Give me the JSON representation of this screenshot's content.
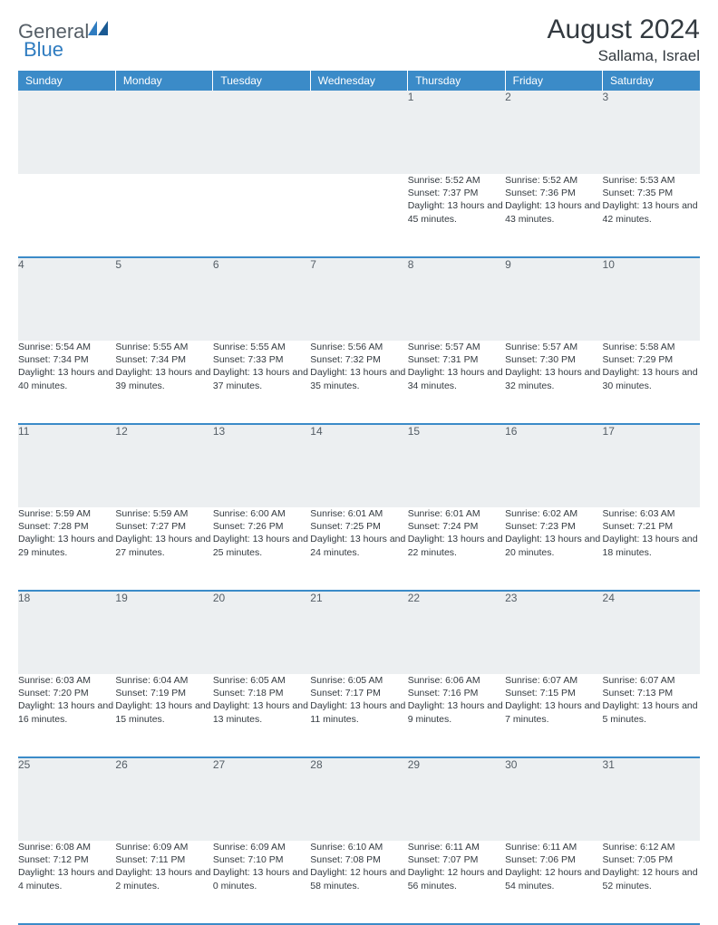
{
  "brand": {
    "name_gray": "General",
    "name_blue": "Blue",
    "blue_color": "#2f7cc0",
    "gray_color": "#555e66"
  },
  "title": "August 2024",
  "location": "Sallama, Israel",
  "header_bg": "#3b8bc8",
  "daynum_bg": "#eceff1",
  "border_color": "#3b8bc8",
  "text_color": "#333a40",
  "weekdays": [
    "Sunday",
    "Monday",
    "Tuesday",
    "Wednesday",
    "Thursday",
    "Friday",
    "Saturday"
  ],
  "weeks": [
    [
      null,
      null,
      null,
      null,
      {
        "d": "1",
        "sr": "5:52 AM",
        "ss": "7:37 PM",
        "dl": "13 hours and 45 minutes."
      },
      {
        "d": "2",
        "sr": "5:52 AM",
        "ss": "7:36 PM",
        "dl": "13 hours and 43 minutes."
      },
      {
        "d": "3",
        "sr": "5:53 AM",
        "ss": "7:35 PM",
        "dl": "13 hours and 42 minutes."
      }
    ],
    [
      {
        "d": "4",
        "sr": "5:54 AM",
        "ss": "7:34 PM",
        "dl": "13 hours and 40 minutes."
      },
      {
        "d": "5",
        "sr": "5:55 AM",
        "ss": "7:34 PM",
        "dl": "13 hours and 39 minutes."
      },
      {
        "d": "6",
        "sr": "5:55 AM",
        "ss": "7:33 PM",
        "dl": "13 hours and 37 minutes."
      },
      {
        "d": "7",
        "sr": "5:56 AM",
        "ss": "7:32 PM",
        "dl": "13 hours and 35 minutes."
      },
      {
        "d": "8",
        "sr": "5:57 AM",
        "ss": "7:31 PM",
        "dl": "13 hours and 34 minutes."
      },
      {
        "d": "9",
        "sr": "5:57 AM",
        "ss": "7:30 PM",
        "dl": "13 hours and 32 minutes."
      },
      {
        "d": "10",
        "sr": "5:58 AM",
        "ss": "7:29 PM",
        "dl": "13 hours and 30 minutes."
      }
    ],
    [
      {
        "d": "11",
        "sr": "5:59 AM",
        "ss": "7:28 PM",
        "dl": "13 hours and 29 minutes."
      },
      {
        "d": "12",
        "sr": "5:59 AM",
        "ss": "7:27 PM",
        "dl": "13 hours and 27 minutes."
      },
      {
        "d": "13",
        "sr": "6:00 AM",
        "ss": "7:26 PM",
        "dl": "13 hours and 25 minutes."
      },
      {
        "d": "14",
        "sr": "6:01 AM",
        "ss": "7:25 PM",
        "dl": "13 hours and 24 minutes."
      },
      {
        "d": "15",
        "sr": "6:01 AM",
        "ss": "7:24 PM",
        "dl": "13 hours and 22 minutes."
      },
      {
        "d": "16",
        "sr": "6:02 AM",
        "ss": "7:23 PM",
        "dl": "13 hours and 20 minutes."
      },
      {
        "d": "17",
        "sr": "6:03 AM",
        "ss": "7:21 PM",
        "dl": "13 hours and 18 minutes."
      }
    ],
    [
      {
        "d": "18",
        "sr": "6:03 AM",
        "ss": "7:20 PM",
        "dl": "13 hours and 16 minutes."
      },
      {
        "d": "19",
        "sr": "6:04 AM",
        "ss": "7:19 PM",
        "dl": "13 hours and 15 minutes."
      },
      {
        "d": "20",
        "sr": "6:05 AM",
        "ss": "7:18 PM",
        "dl": "13 hours and 13 minutes."
      },
      {
        "d": "21",
        "sr": "6:05 AM",
        "ss": "7:17 PM",
        "dl": "13 hours and 11 minutes."
      },
      {
        "d": "22",
        "sr": "6:06 AM",
        "ss": "7:16 PM",
        "dl": "13 hours and 9 minutes."
      },
      {
        "d": "23",
        "sr": "6:07 AM",
        "ss": "7:15 PM",
        "dl": "13 hours and 7 minutes."
      },
      {
        "d": "24",
        "sr": "6:07 AM",
        "ss": "7:13 PM",
        "dl": "13 hours and 5 minutes."
      }
    ],
    [
      {
        "d": "25",
        "sr": "6:08 AM",
        "ss": "7:12 PM",
        "dl": "13 hours and 4 minutes."
      },
      {
        "d": "26",
        "sr": "6:09 AM",
        "ss": "7:11 PM",
        "dl": "13 hours and 2 minutes."
      },
      {
        "d": "27",
        "sr": "6:09 AM",
        "ss": "7:10 PM",
        "dl": "13 hours and 0 minutes."
      },
      {
        "d": "28",
        "sr": "6:10 AM",
        "ss": "7:08 PM",
        "dl": "12 hours and 58 minutes."
      },
      {
        "d": "29",
        "sr": "6:11 AM",
        "ss": "7:07 PM",
        "dl": "12 hours and 56 minutes."
      },
      {
        "d": "30",
        "sr": "6:11 AM",
        "ss": "7:06 PM",
        "dl": "12 hours and 54 minutes."
      },
      {
        "d": "31",
        "sr": "6:12 AM",
        "ss": "7:05 PM",
        "dl": "12 hours and 52 minutes."
      }
    ]
  ],
  "labels": {
    "sunrise": "Sunrise:",
    "sunset": "Sunset:",
    "daylight": "Daylight:"
  }
}
